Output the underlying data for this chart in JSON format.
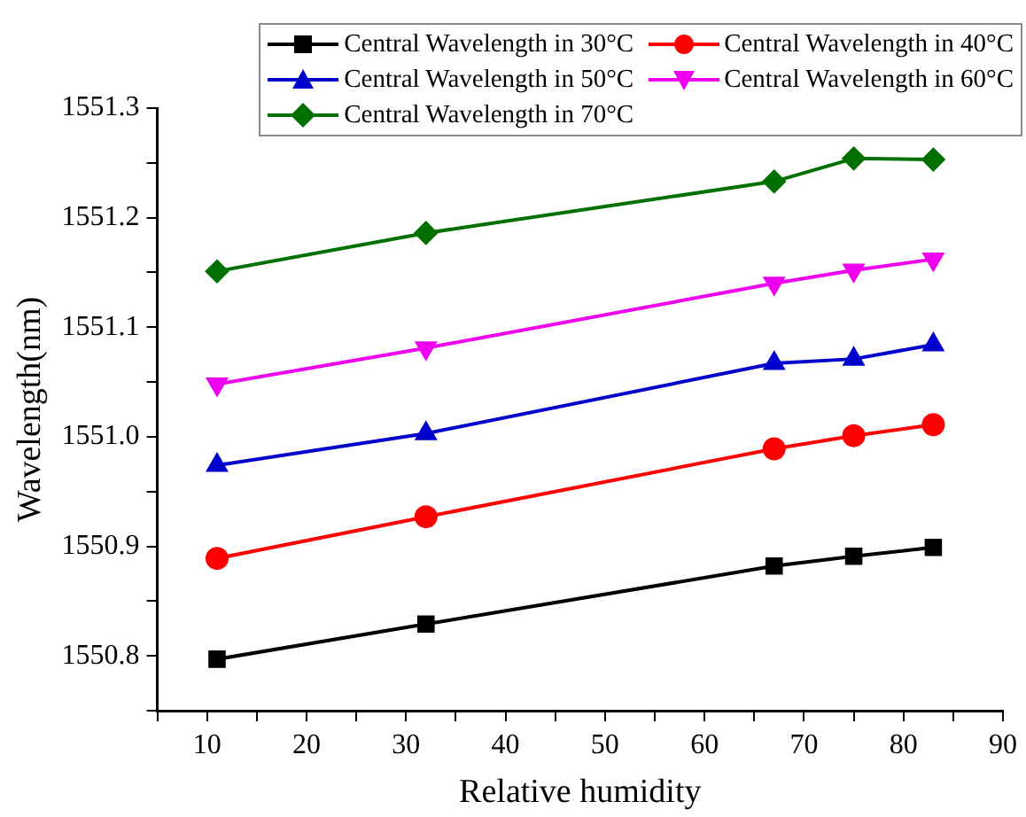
{
  "chart_data": {
    "type": "line",
    "xlabel": "Relative humidity",
    "ylabel": "Wavelength(nm)",
    "x": [
      11,
      32,
      67,
      75,
      83
    ],
    "xlim": [
      5,
      90
    ],
    "xticks": [
      {
        "value": 5,
        "label": null
      },
      10,
      {
        "value": 15,
        "label": null
      },
      20,
      {
        "value": 25,
        "label": null
      },
      30,
      {
        "value": 35,
        "label": null
      },
      40,
      {
        "value": 45,
        "label": null
      },
      50,
      {
        "value": 55,
        "label": null
      },
      60,
      {
        "value": 65,
        "label": null
      },
      70,
      {
        "value": 75,
        "label": null
      },
      80,
      {
        "value": 85,
        "label": null
      },
      90
    ],
    "ylim": [
      1550.75,
      1551.3
    ],
    "yticks": [
      {
        "value": 1550.75,
        "label": null
      },
      1550.8,
      {
        "value": 1550.85,
        "label": null
      },
      1550.9,
      {
        "value": 1550.95,
        "label": null
      },
      {
        "value": 1551.0,
        "label": "1551.0"
      },
      {
        "value": 1551.05,
        "label": null
      },
      1551.1,
      {
        "value": 1551.15,
        "label": null
      },
      1551.2,
      {
        "value": 1551.25,
        "label": null
      },
      1551.3
    ],
    "grid": false,
    "legend": "top right",
    "line_style": "solid",
    "series": [
      {
        "name": "Central Wavelength in 30°C",
        "color": "#000000",
        "marker": "square",
        "values": [
          1550.797,
          1550.829,
          1550.882,
          1550.891,
          1550.899
        ]
      },
      {
        "name": "Central Wavelength in 40°C",
        "color": "#ff0000",
        "marker": "circle",
        "values": [
          1550.889,
          1550.927,
          1550.989,
          1551.001,
          1551.011
        ]
      },
      {
        "name": "Central Wavelength in 50°C",
        "color": "#0000cc",
        "marker": "triangle",
        "values": [
          1550.974,
          1551.003,
          1551.067,
          1551.071,
          1551.084
        ]
      },
      {
        "name": "Central Wavelength in 60°C",
        "color": "#ee00ee",
        "marker": "triangle-down",
        "values": [
          1551.048,
          1551.081,
          1551.14,
          1551.152,
          1551.162
        ]
      },
      {
        "name": "Central Wavelength in 70°C",
        "color": "#007000",
        "marker": "diamond",
        "values": [
          1551.151,
          1551.186,
          1551.233,
          1551.254,
          1551.253
        ]
      }
    ]
  }
}
